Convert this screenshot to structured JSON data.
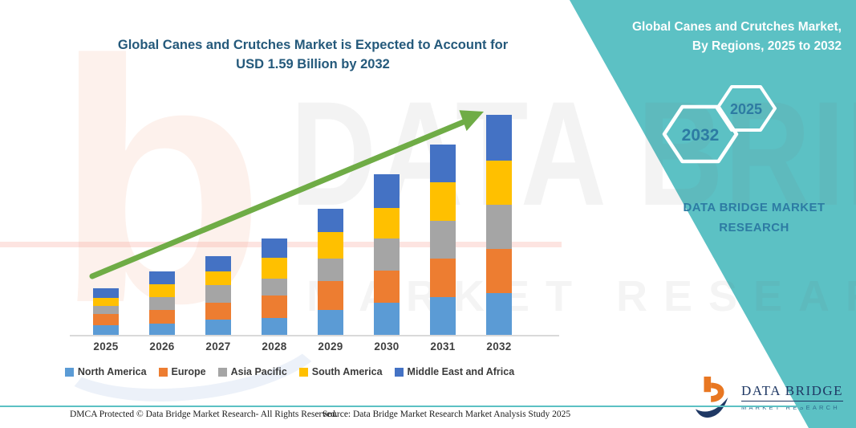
{
  "header": {
    "title_line1": "Global Canes and Crutches Market is Expected to Account for",
    "title_line2": "USD 1.59 Billion by 2032"
  },
  "side_panel": {
    "accent_color": "#5cc1c4",
    "title_line1": "Global Canes and Crutches Market,",
    "title_line2": "By Regions, 2025 to 2032",
    "badge_back": "2025",
    "badge_front": "2032",
    "brand_line1": "DATA BRIDGE MARKET",
    "brand_line2": "RESEARCH"
  },
  "chart_data": {
    "type": "bar",
    "stacked": true,
    "title": "Global Canes and Crutches Market, By Regions, 2025 to 2032",
    "xlabel": "",
    "ylabel": "",
    "units": "USD billion (estimated from bar heights; y-axis unlabeled, total for 2032 = 1.59 per title)",
    "y_axis_visible": false,
    "grid": false,
    "legend_position": "bottom",
    "categories": [
      "2025",
      "2026",
      "2027",
      "2028",
      "2029",
      "2030",
      "2031",
      "2032"
    ],
    "series": [
      {
        "name": "North America",
        "color": "#5B9BD5",
        "values": [
          0.07,
          0.08,
          0.11,
          0.12,
          0.18,
          0.23,
          0.27,
          0.3
        ]
      },
      {
        "name": "Europe",
        "color": "#ED7D31",
        "values": [
          0.08,
          0.1,
          0.12,
          0.16,
          0.21,
          0.23,
          0.28,
          0.32
        ]
      },
      {
        "name": "Asia Pacific",
        "color": "#A5A5A5",
        "values": [
          0.06,
          0.09,
          0.13,
          0.12,
          0.16,
          0.23,
          0.27,
          0.32
        ]
      },
      {
        "name": "South America",
        "color": "#FFC000",
        "values": [
          0.06,
          0.09,
          0.1,
          0.15,
          0.19,
          0.22,
          0.28,
          0.32
        ]
      },
      {
        "name": "Middle East and Africa",
        "color": "#4472C4",
        "values": [
          0.07,
          0.09,
          0.11,
          0.14,
          0.17,
          0.24,
          0.27,
          0.33
        ]
      }
    ],
    "totals": [
      0.34,
      0.45,
      0.57,
      0.69,
      0.91,
      1.15,
      1.37,
      1.59
    ]
  },
  "trend_arrow": {
    "color": "#6FAC46",
    "direction": "up"
  },
  "watermark": {
    "letter": "b",
    "text1": "DATA BRIDGE",
    "text2": "MARKET RESEARCH"
  },
  "logo": {
    "name": "DATA BRIDGE",
    "sub": "MARKET RESEARCH"
  },
  "footer": {
    "left": "DMCA Protected © Data Bridge Market Research-  All Rights Reserved.",
    "right": "Source: Data Bridge Market Research  Market Analysis Study 2025"
  }
}
